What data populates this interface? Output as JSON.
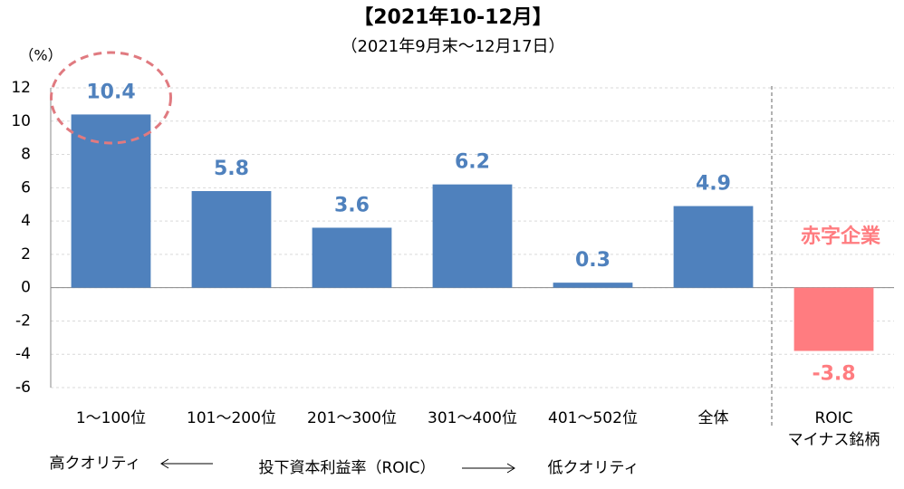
{
  "chart_data": {
    "type": "bar",
    "title": "【2021年10-12月】",
    "subtitle": "（2021年9月末～12月17日）",
    "y_unit": "（%）",
    "categories": [
      "1～100位",
      "101～200位",
      "201～300位",
      "301～400位",
      "401～502位",
      "全体",
      "ROIC\nマイナス銘柄"
    ],
    "values": [
      10.4,
      5.8,
      3.6,
      6.2,
      0.3,
      4.9,
      -3.8
    ],
    "colors": [
      "#4f81bd",
      "#4f81bd",
      "#4f81bd",
      "#4f81bd",
      "#4f81bd",
      "#4f81bd",
      "#ff7c80"
    ],
    "ylim": [
      -6,
      12
    ],
    "yticks": [
      -6,
      -4,
      -2,
      0,
      2,
      4,
      6,
      8,
      10,
      12
    ],
    "grid": true,
    "annotations": {
      "deficit": "赤字企業",
      "high_quality": "高クオリティ",
      "axis_note": "投下資本利益率（ROIC）",
      "low_quality": "低クオリティ"
    }
  }
}
